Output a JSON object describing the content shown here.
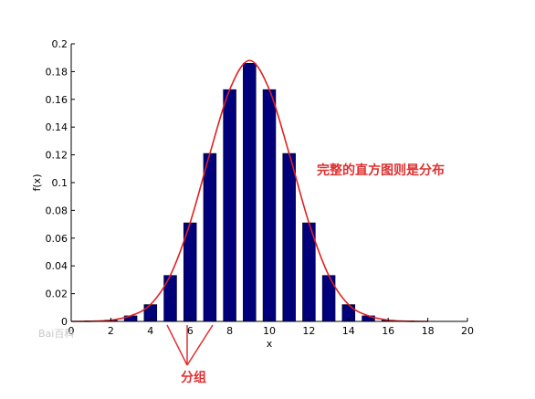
{
  "chart_data": {
    "type": "bar",
    "xlabel": "x",
    "ylabel": "f(x)",
    "xlim": [
      0,
      20
    ],
    "ylim": [
      0,
      0.2
    ],
    "x_ticks": [
      "0",
      "2",
      "4",
      "6",
      "8",
      "10",
      "12",
      "14",
      "16",
      "18",
      "20"
    ],
    "y_ticks": [
      "0",
      "0.02",
      "0.04",
      "0.06",
      "0.08",
      "0.1",
      "0.12",
      "0.14",
      "0.16",
      "0.18",
      "0.2"
    ],
    "grid": false,
    "bars": {
      "color": "#00007a",
      "x": [
        1,
        2,
        3,
        4,
        5,
        6,
        7,
        8,
        9,
        10,
        11,
        12,
        13,
        14,
        15,
        16,
        17
      ],
      "values": [
        0.0001,
        0.0009,
        0.004,
        0.0121,
        0.0331,
        0.071,
        0.121,
        0.167,
        0.186,
        0.167,
        0.121,
        0.071,
        0.0331,
        0.0121,
        0.004,
        0.0009,
        0.0001
      ]
    },
    "curve": {
      "type": "line",
      "color": "#e02020",
      "x": [
        0,
        1,
        2,
        3,
        4,
        5,
        6,
        7,
        8,
        9,
        10,
        11,
        12,
        13,
        14,
        15,
        16,
        17,
        18
      ],
      "values": [
        0.0,
        0.0001,
        0.0009,
        0.004,
        0.0121,
        0.0331,
        0.071,
        0.121,
        0.167,
        0.188,
        0.167,
        0.121,
        0.071,
        0.0331,
        0.0121,
        0.004,
        0.0009,
        0.0001,
        0.0
      ]
    },
    "annotations": {
      "curve_note": "完整的直方图则是分布",
      "bin_note": "分组"
    },
    "watermark": "Bai百科"
  },
  "colors": {
    "bar": "#00007a",
    "curve": "#e02020",
    "annotation": "#e03030"
  }
}
